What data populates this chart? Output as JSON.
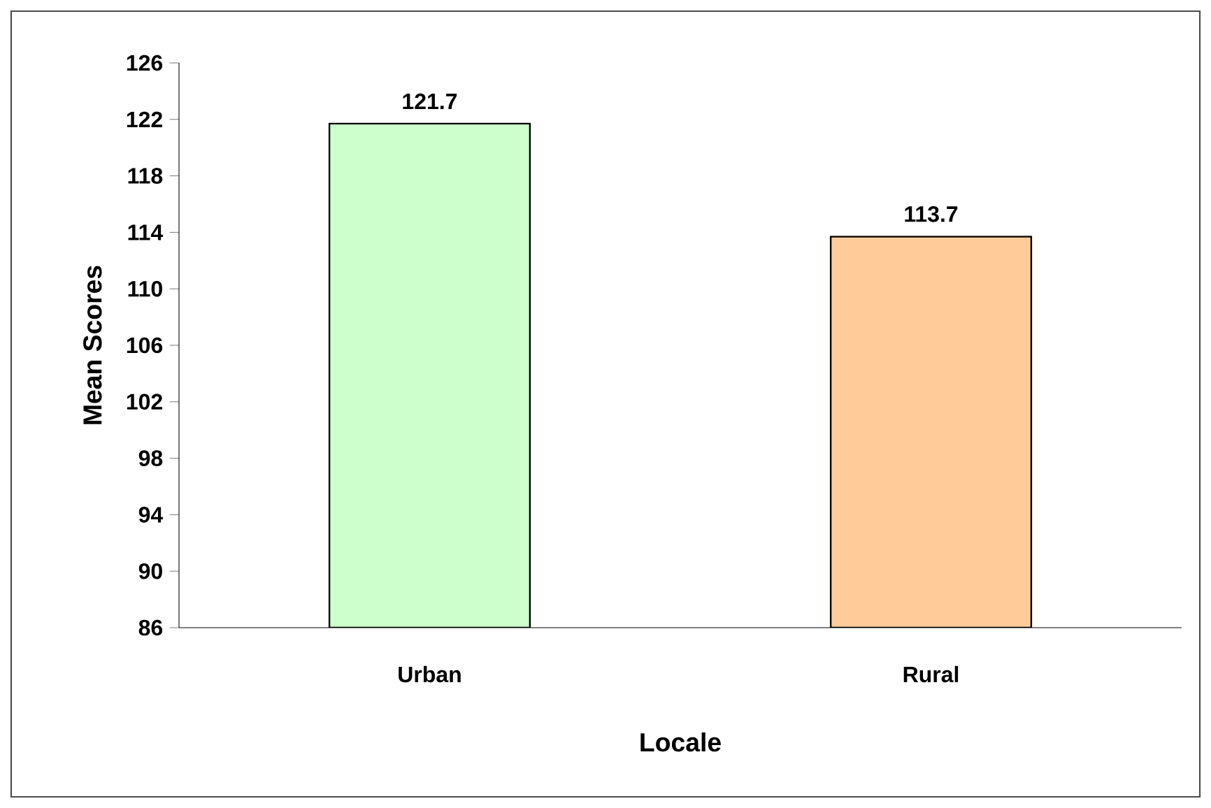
{
  "chart_data": {
    "type": "bar",
    "xlabel": "Locale",
    "ylabel": "Mean Scores",
    "categories": [
      "Urban",
      "Rural"
    ],
    "values": [
      121.7,
      113.7
    ],
    "colors": [
      "#ccffcc",
      "#ffcc99"
    ],
    "ylim": [
      86,
      126
    ],
    "yticks": [
      86,
      90,
      94,
      98,
      102,
      106,
      110,
      114,
      118,
      122,
      126
    ],
    "data_labels": true
  }
}
